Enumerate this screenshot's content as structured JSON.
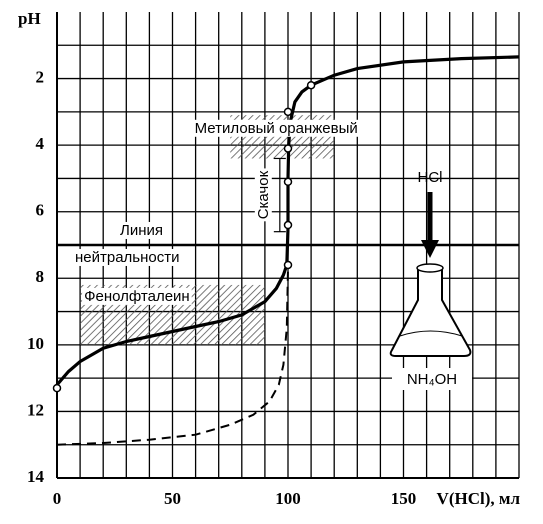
{
  "chart_data": {
    "type": "line",
    "y_label": "pH",
    "x_label": "V(HCl), мл",
    "xlim": [
      0,
      200
    ],
    "ylim": [
      0,
      14
    ],
    "y_inverted": true,
    "xticks": [
      0,
      50,
      100,
      150
    ],
    "yticks": [
      2,
      4,
      6,
      8,
      10,
      12,
      14
    ],
    "xgrid": [
      0,
      10,
      20,
      30,
      40,
      50,
      60,
      70,
      80,
      90,
      100,
      110,
      120,
      130,
      140,
      150,
      160,
      170,
      180,
      190,
      200
    ],
    "ygrid": [
      1,
      2,
      3,
      4,
      5,
      6,
      7,
      8,
      9,
      10,
      11,
      12,
      13,
      14
    ],
    "series": [
      {
        "line_style": "solid",
        "color": "#000000",
        "x": [
          0,
          5,
          10,
          20,
          30,
          40,
          50,
          60,
          70,
          80,
          90,
          95,
          98,
          99.5,
          100,
          100,
          100.3,
          101,
          103,
          106,
          110,
          120,
          130,
          150,
          175,
          200
        ],
        "values": [
          11.2,
          10.8,
          10.5,
          10.1,
          9.9,
          9.75,
          9.6,
          9.45,
          9.3,
          9.1,
          8.7,
          8.3,
          7.9,
          7.6,
          6.5,
          5.0,
          4.0,
          3.3,
          2.7,
          2.4,
          2.2,
          1.9,
          1.7,
          1.5,
          1.4,
          1.35
        ]
      },
      {
        "line_style": "dashed",
        "color": "#000000",
        "x": [
          0,
          20,
          40,
          60,
          75,
          85,
          92,
          96,
          98,
          99.5,
          100
        ],
        "values": [
          13,
          12.95,
          12.85,
          12.7,
          12.4,
          12.1,
          11.7,
          11.2,
          10.6,
          9.5,
          7.7
        ]
      }
    ],
    "points": {
      "x": [
        0,
        100,
        100,
        100,
        100,
        100,
        110
      ],
      "values": [
        11.3,
        7.6,
        6.4,
        5.1,
        4.1,
        3.0,
        2.2
      ]
    },
    "bands": [
      {
        "label": "Метиловый оранжевый",
        "xlim": [
          75,
          120
        ],
        "ylim": [
          3.1,
          4.4
        ]
      },
      {
        "label": "Фенолфталеин",
        "xlim": [
          10,
          90
        ],
        "ylim": [
          8.2,
          10
        ]
      }
    ],
    "neutral_line": {
      "value": 7,
      "label": [
        "Линия",
        "нейтральности"
      ]
    },
    "jump": {
      "label": "Скачок",
      "x": 93,
      "ylim": [
        4.4,
        6.6
      ]
    },
    "flask": {
      "reagent": "HCl",
      "content": "NH₄OH"
    }
  }
}
